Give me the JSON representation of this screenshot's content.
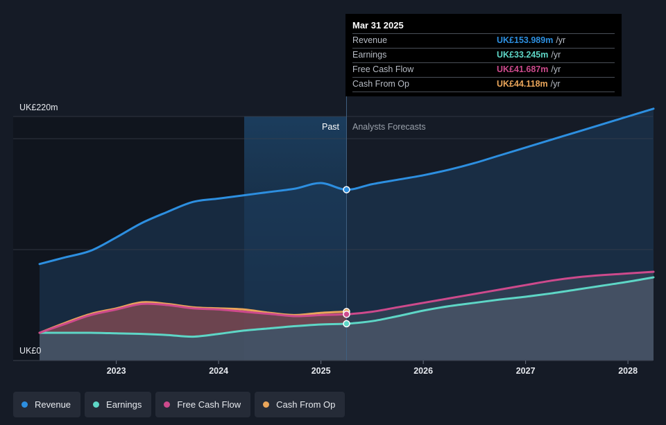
{
  "chart_data": {
    "type": "area",
    "y_top_label": "UK£220m",
    "y_bottom_label": "UK£0",
    "ylim": [
      0,
      220
    ],
    "xlim": [
      2022.25,
      2028.25
    ],
    "x_ticks": [
      {
        "value": 2023,
        "label": "2023"
      },
      {
        "value": 2024,
        "label": "2024"
      },
      {
        "value": 2025,
        "label": "2025"
      },
      {
        "value": 2026,
        "label": "2026"
      },
      {
        "value": 2027,
        "label": "2027"
      },
      {
        "value": 2028,
        "label": "2028"
      }
    ],
    "gridlines": [
      0,
      100,
      200,
      220
    ],
    "divider_x": 2025.25,
    "highlight_start_x": 2024.25,
    "past_label": "Past",
    "forecast_label": "Analysts Forecasts",
    "series": [
      {
        "name": "Revenue",
        "color": "#2d8fe0",
        "points": [
          [
            2022.25,
            87
          ],
          [
            2022.5,
            93
          ],
          [
            2022.75,
            99
          ],
          [
            2023.0,
            111
          ],
          [
            2023.25,
            124
          ],
          [
            2023.5,
            134
          ],
          [
            2023.75,
            143
          ],
          [
            2024.0,
            146
          ],
          [
            2024.25,
            149
          ],
          [
            2024.5,
            152
          ],
          [
            2024.75,
            155
          ],
          [
            2025.0,
            160
          ],
          [
            2025.25,
            154.0
          ],
          [
            2025.5,
            159
          ],
          [
            2025.75,
            163
          ],
          [
            2026.0,
            167
          ],
          [
            2026.25,
            172
          ],
          [
            2026.5,
            178
          ],
          [
            2026.75,
            185
          ],
          [
            2027.0,
            192
          ],
          [
            2027.25,
            199
          ],
          [
            2027.5,
            206
          ],
          [
            2027.75,
            213
          ],
          [
            2028.0,
            220
          ],
          [
            2028.25,
            227
          ]
        ]
      },
      {
        "name": "Earnings",
        "color": "#5ed6c6",
        "points": [
          [
            2022.25,
            25
          ],
          [
            2022.5,
            25
          ],
          [
            2022.75,
            25
          ],
          [
            2023.0,
            24.5
          ],
          [
            2023.25,
            24
          ],
          [
            2023.5,
            23
          ],
          [
            2023.75,
            21.5
          ],
          [
            2024.0,
            24
          ],
          [
            2024.25,
            27
          ],
          [
            2024.5,
            29
          ],
          [
            2024.75,
            31
          ],
          [
            2025.0,
            32.5
          ],
          [
            2025.25,
            33.2
          ],
          [
            2025.5,
            35.5
          ],
          [
            2025.75,
            40
          ],
          [
            2026.0,
            45
          ],
          [
            2026.25,
            49
          ],
          [
            2026.5,
            52
          ],
          [
            2026.75,
            55
          ],
          [
            2027.0,
            57.5
          ],
          [
            2027.25,
            60.5
          ],
          [
            2027.5,
            64
          ],
          [
            2027.75,
            67.5
          ],
          [
            2028.0,
            71
          ],
          [
            2028.25,
            75
          ]
        ]
      },
      {
        "name": "Free Cash Flow",
        "color": "#cd4a8c",
        "points": [
          [
            2022.25,
            25
          ],
          [
            2022.5,
            33
          ],
          [
            2022.75,
            41
          ],
          [
            2023.0,
            46
          ],
          [
            2023.25,
            51
          ],
          [
            2023.5,
            50
          ],
          [
            2023.75,
            47
          ],
          [
            2024.0,
            46
          ],
          [
            2024.25,
            44
          ],
          [
            2024.5,
            42
          ],
          [
            2024.75,
            40
          ],
          [
            2025.0,
            41
          ],
          [
            2025.25,
            41.7
          ],
          [
            2025.5,
            44
          ],
          [
            2025.75,
            48
          ],
          [
            2026.0,
            52
          ],
          [
            2026.25,
            56
          ],
          [
            2026.5,
            60
          ],
          [
            2026.75,
            64
          ],
          [
            2027.0,
            68
          ],
          [
            2027.25,
            72
          ],
          [
            2027.5,
            75
          ],
          [
            2027.75,
            77
          ],
          [
            2028.0,
            78.5
          ],
          [
            2028.25,
            80
          ]
        ]
      },
      {
        "name": "Cash From Op",
        "color": "#e9a55a",
        "points": [
          [
            2022.25,
            25
          ],
          [
            2022.5,
            34
          ],
          [
            2022.75,
            42
          ],
          [
            2023.0,
            47
          ],
          [
            2023.25,
            52.5
          ],
          [
            2023.5,
            51
          ],
          [
            2023.75,
            48
          ],
          [
            2024.0,
            47
          ],
          [
            2024.25,
            46
          ],
          [
            2024.5,
            43
          ],
          [
            2024.75,
            41
          ],
          [
            2025.0,
            43
          ],
          [
            2025.25,
            44.1
          ]
        ]
      }
    ]
  },
  "tooltip": {
    "date": "Mar 31 2025",
    "unit": "/yr",
    "rows": [
      {
        "label": "Revenue",
        "value": "UK£153.989m",
        "color": "#2d8fe0"
      },
      {
        "label": "Earnings",
        "value": "UK£33.245m",
        "color": "#5ed6c6"
      },
      {
        "label": "Free Cash Flow",
        "value": "UK£41.687m",
        "color": "#cd4a8c"
      },
      {
        "label": "Cash From Op",
        "value": "UK£44.118m",
        "color": "#e9a55a"
      }
    ]
  },
  "legend": [
    {
      "label": "Revenue",
      "color": "#2d8fe0"
    },
    {
      "label": "Earnings",
      "color": "#5ed6c6"
    },
    {
      "label": "Free Cash Flow",
      "color": "#cd4a8c"
    },
    {
      "label": "Cash From Op",
      "color": "#e9a55a"
    }
  ]
}
